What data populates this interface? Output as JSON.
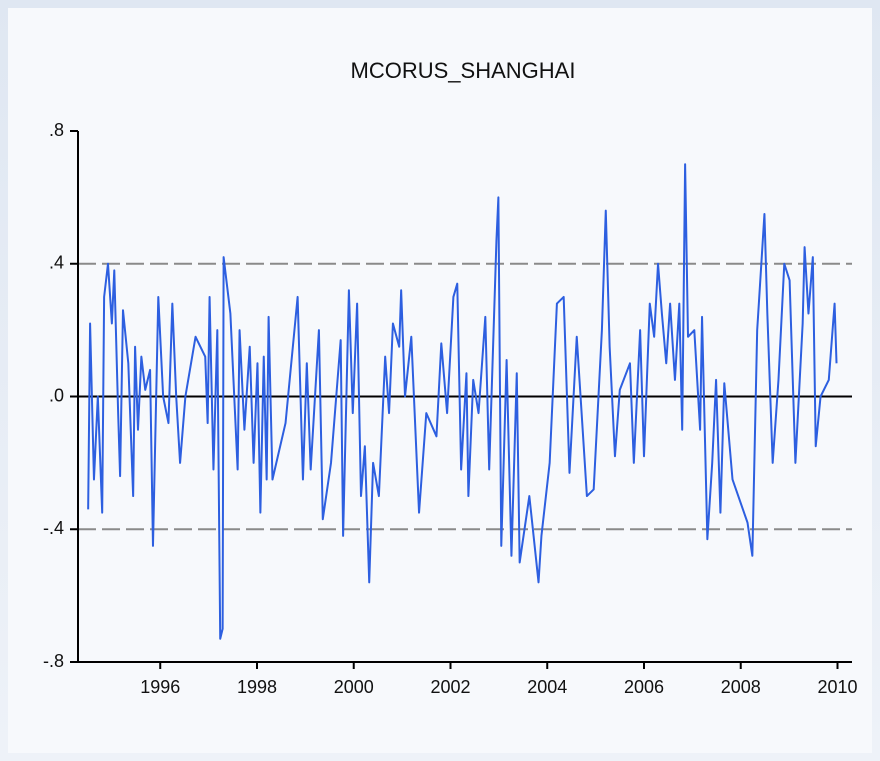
{
  "chart_data": {
    "type": "line",
    "title": "MCORUS_SHANGHAI",
    "series": [
      {
        "name": "MCORUS_SHANGHAI",
        "color": "#2d5fe0",
        "x": [
          1994.51,
          1994.55,
          1994.63,
          1994.71,
          1994.8,
          1994.84,
          1994.92,
          1995.0,
          1995.05,
          1995.13,
          1995.17,
          1995.23,
          1995.34,
          1995.44,
          1995.48,
          1995.54,
          1995.61,
          1995.69,
          1995.79,
          1995.85,
          1995.96,
          1996.06,
          1996.17,
          1996.25,
          1996.33,
          1996.41,
          1996.52,
          1996.73,
          1996.93,
          1996.98,
          1997.02,
          1997.1,
          1997.18,
          1997.24,
          1997.29,
          1997.31,
          1997.45,
          1997.6,
          1997.64,
          1997.74,
          1997.85,
          1997.93,
          1998.01,
          1998.07,
          1998.14,
          1998.2,
          1998.24,
          1998.32,
          1998.59,
          1998.84,
          1998.95,
          1999.03,
          1999.11,
          1999.28,
          1999.36,
          1999.53,
          1999.73,
          1999.78,
          1999.9,
          1999.98,
          2000.07,
          2000.15,
          2000.23,
          2000.32,
          2000.4,
          2000.52,
          2000.65,
          2000.73,
          2000.81,
          2000.94,
          2000.98,
          2001.06,
          2001.19,
          2001.35,
          2001.5,
          2001.71,
          2001.81,
          2001.93,
          2002.06,
          2002.14,
          2002.22,
          2002.33,
          2002.37,
          2002.47,
          2002.58,
          2002.72,
          2002.8,
          2002.95,
          2002.99,
          2003.05,
          2003.16,
          2003.26,
          2003.37,
          2003.43,
          2003.63,
          2003.82,
          2003.88,
          2004.05,
          2004.2,
          2004.34,
          2004.46,
          2004.61,
          2004.82,
          2004.96,
          2005.13,
          2005.21,
          2005.29,
          2005.4,
          2005.5,
          2005.71,
          2005.79,
          2005.92,
          2006.0,
          2006.12,
          2006.21,
          2006.29,
          2006.37,
          2006.46,
          2006.54,
          2006.64,
          2006.73,
          2006.79,
          2006.85,
          2006.91,
          2007.04,
          2007.16,
          2007.2,
          2007.31,
          2007.41,
          2007.49,
          2007.58,
          2007.66,
          2007.83,
          2008.14,
          2008.24,
          2008.34,
          2008.49,
          2008.55,
          2008.66,
          2008.78,
          2008.9,
          2009.01,
          2009.13,
          2009.28,
          2009.32,
          2009.4,
          2009.49,
          2009.55,
          2009.65,
          2009.82,
          2009.94,
          2009.98
        ],
        "values": [
          -0.34,
          0.22,
          -0.25,
          0.0,
          -0.35,
          0.3,
          0.4,
          0.22,
          0.38,
          -0.05,
          -0.24,
          0.26,
          0.1,
          -0.3,
          0.15,
          -0.1,
          0.12,
          0.02,
          0.08,
          -0.45,
          0.3,
          0.0,
          -0.08,
          0.28,
          0.0,
          -0.2,
          0.0,
          0.18,
          0.12,
          -0.08,
          0.3,
          -0.22,
          0.2,
          -0.73,
          -0.7,
          0.42,
          0.25,
          -0.22,
          0.2,
          -0.1,
          0.15,
          -0.2,
          0.1,
          -0.35,
          0.12,
          -0.25,
          0.24,
          -0.25,
          -0.08,
          0.3,
          -0.25,
          0.1,
          -0.22,
          0.2,
          -0.37,
          -0.2,
          0.17,
          -0.42,
          0.32,
          -0.05,
          0.28,
          -0.3,
          -0.15,
          -0.56,
          -0.2,
          -0.3,
          0.12,
          -0.05,
          0.22,
          0.15,
          0.32,
          0.0,
          0.18,
          -0.35,
          -0.05,
          -0.12,
          0.16,
          -0.05,
          0.3,
          0.34,
          -0.22,
          0.07,
          -0.3,
          0.05,
          -0.05,
          0.24,
          -0.22,
          0.47,
          0.6,
          -0.45,
          0.11,
          -0.48,
          0.07,
          -0.5,
          -0.3,
          -0.56,
          -0.42,
          -0.2,
          0.28,
          0.3,
          -0.23,
          0.18,
          -0.3,
          -0.28,
          0.2,
          0.56,
          0.15,
          -0.18,
          0.02,
          0.1,
          -0.2,
          0.2,
          -0.18,
          0.28,
          0.18,
          0.4,
          0.25,
          0.1,
          0.28,
          0.05,
          0.28,
          -0.1,
          0.7,
          0.18,
          0.2,
          -0.1,
          0.24,
          -0.43,
          -0.2,
          0.05,
          -0.35,
          0.04,
          -0.25,
          -0.38,
          -0.48,
          0.2,
          0.55,
          0.25,
          -0.2,
          0.05,
          0.4,
          0.35,
          -0.2,
          0.22,
          0.45,
          0.25,
          0.42,
          -0.15,
          0.0,
          0.05,
          0.28,
          0.1
        ]
      }
    ],
    "xlim": [
      1994.3,
      2010.3
    ],
    "xticks": [
      1996,
      1998,
      2000,
      2002,
      2004,
      2006,
      2008,
      2010
    ],
    "ylim": [
      -0.8,
      0.8
    ],
    "yticks": [
      {
        "value": -0.8,
        "label": "-.8"
      },
      {
        "value": -0.4,
        "label": "-.4"
      },
      {
        "value": 0,
        "label": ".0"
      },
      {
        "value": 0.4,
        "label": ".4"
      },
      {
        "value": 0.8,
        "label": ".8"
      }
    ],
    "reference_lines": [
      {
        "value": 0.4,
        "style": "dashed"
      },
      {
        "value": 0,
        "style": "solid"
      },
      {
        "value": -0.4,
        "style": "dashed"
      }
    ]
  }
}
